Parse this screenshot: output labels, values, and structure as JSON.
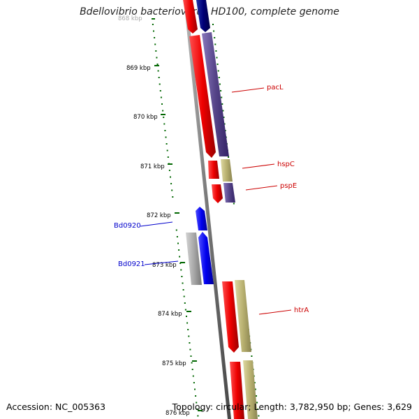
{
  "title": "Bdellovibrio bacteriovorus HD100, complete genome",
  "accession": "Accession: NC_005363",
  "summary": "Topology: circular; Length: 3,782,950 bp; Genes: 3,629",
  "ruler": {
    "partial_top": "868 kbp",
    "ticks": [
      "869 kbp",
      "870 kbp",
      "871 kbp",
      "872 kbp",
      "873 kbp",
      "874 kbp",
      "875 kbp",
      "876 kbp"
    ]
  },
  "labels": [
    {
      "id": "pacL",
      "text": "pacL",
      "color": "#cc0000"
    },
    {
      "id": "hspC",
      "text": "hspC",
      "color": "#cc0000"
    },
    {
      "id": "pspE",
      "text": "pspE",
      "color": "#cc0000"
    },
    {
      "id": "Bd0920",
      "text": "Bd0920",
      "color": "#0000cc"
    },
    {
      "id": "Bd0921",
      "text": "Bd0921",
      "color": "#0000cc"
    },
    {
      "id": "htrA",
      "text": "htrA",
      "color": "#cc0000"
    }
  ],
  "colors": {
    "backbone": "#888888",
    "cds_forward": "#ee0000",
    "cds_forward_blue": "#0000ee",
    "feature_purple": "#554488",
    "feature_navy": "#000066",
    "feature_khaki": "#b8b070",
    "feature_gray": "#a8a8a8",
    "gc_dots": "#006600"
  }
}
